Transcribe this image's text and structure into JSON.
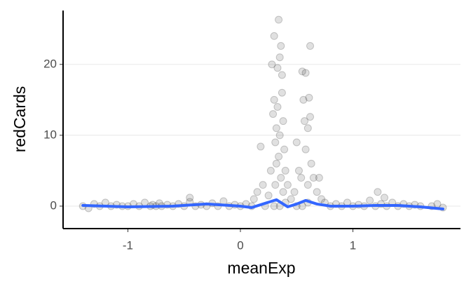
{
  "chart_data": {
    "type": "scatter",
    "x_label": "meanExp",
    "y_label": "redCards",
    "xlim": [
      -1.576,
      1.956
    ],
    "ylim": [
      -3.17,
      27.6
    ],
    "xticks": [
      -1,
      0,
      1
    ],
    "yticks": [
      0,
      10,
      20
    ],
    "grid": true,
    "point_color": "#000000",
    "x": [
      -1.4,
      -1.35,
      -1.3,
      -1.25,
      -1.2,
      -1.15,
      -1.1,
      -1.05,
      -1.0,
      -0.95,
      -0.9,
      -0.85,
      -0.8,
      -0.78,
      -0.75,
      -0.72,
      -0.7,
      -0.65,
      -0.6,
      -0.55,
      -0.5,
      -0.45,
      -0.4,
      -0.35,
      -0.3,
      -0.45,
      -0.25,
      -0.2,
      -0.15,
      -0.1,
      -0.05,
      0,
      0.05,
      0.1,
      0.12,
      0.15,
      0.18,
      0.2,
      0.22,
      0.25,
      0.27,
      0.28,
      0.29,
      0.3,
      0.3,
      0.31,
      0.31,
      0.32,
      0.32,
      0.33,
      0.33,
      0.34,
      0.34,
      0.35,
      0.35,
      0.36,
      0.36,
      0.37,
      0.37,
      0.38,
      0.38,
      0.39,
      0.4,
      0.42,
      0.45,
      0.48,
      0.5,
      0.52,
      0.54,
      0.55,
      0.56,
      0.57,
      0.58,
      0.58,
      0.6,
      0.6,
      0.61,
      0.62,
      0.62,
      0.63,
      0.65,
      0.68,
      0.7,
      0.72,
      0.75,
      0.8,
      0.85,
      0.9,
      0.95,
      1.0,
      1.05,
      1.1,
      1.15,
      1.2,
      1.22,
      1.25,
      1.28,
      1.3,
      1.35,
      1.4,
      1.45,
      1.5,
      1.55,
      1.6,
      1.7,
      1.75,
      1.8,
      0.3,
      0.35,
      0.4,
      0.55,
      0.6,
      0.5
    ],
    "values": [
      0,
      -0.3,
      0.3,
      0,
      0.5,
      0,
      0.2,
      0,
      0,
      0.3,
      0,
      0.5,
      0,
      0.2,
      0,
      0.4,
      0,
      0.2,
      0,
      0.3,
      0,
      0.6,
      0,
      0.2,
      0,
      1.2,
      0.4,
      0,
      0.7,
      0,
      0.2,
      0,
      0.3,
      0,
      1,
      2,
      8.4,
      3,
      0,
      1.5,
      5,
      20,
      13,
      24,
      15,
      9,
      3,
      11,
      6,
      19.5,
      14,
      26.3,
      7,
      21,
      10,
      22.6,
      4,
      18.5,
      16,
      12,
      2,
      8,
      5,
      3,
      1,
      2,
      9,
      5,
      4,
      19,
      15,
      12,
      18.8,
      8,
      11,
      3,
      15.3,
      22.6,
      12.6,
      6,
      4,
      2,
      4,
      1,
      0.5,
      0,
      0.3,
      0,
      0.5,
      0,
      0.2,
      0,
      0.8,
      0,
      2,
      0.3,
      1.2,
      0,
      0.5,
      0,
      0.3,
      0,
      0.2,
      0,
      0,
      0.3,
      -0.2,
      0,
      0,
      0.5,
      0,
      0.5,
      0
    ],
    "smooth": {
      "color": "#3366ff",
      "x": [
        -1.4,
        -1.0,
        -0.6,
        -0.3,
        0,
        0.1,
        0.2,
        0.32,
        0.42,
        0.5,
        0.58,
        0.68,
        0.8,
        1.0,
        1.2,
        1.4,
        1.6,
        1.8
      ],
      "values": [
        0.1,
        -0.1,
        0,
        0.3,
        0,
        -0.2,
        0.3,
        0.9,
        -0.1,
        0.3,
        0.8,
        0.3,
        0,
        0,
        0.1,
        0.1,
        -0.1,
        -0.4
      ]
    }
  }
}
